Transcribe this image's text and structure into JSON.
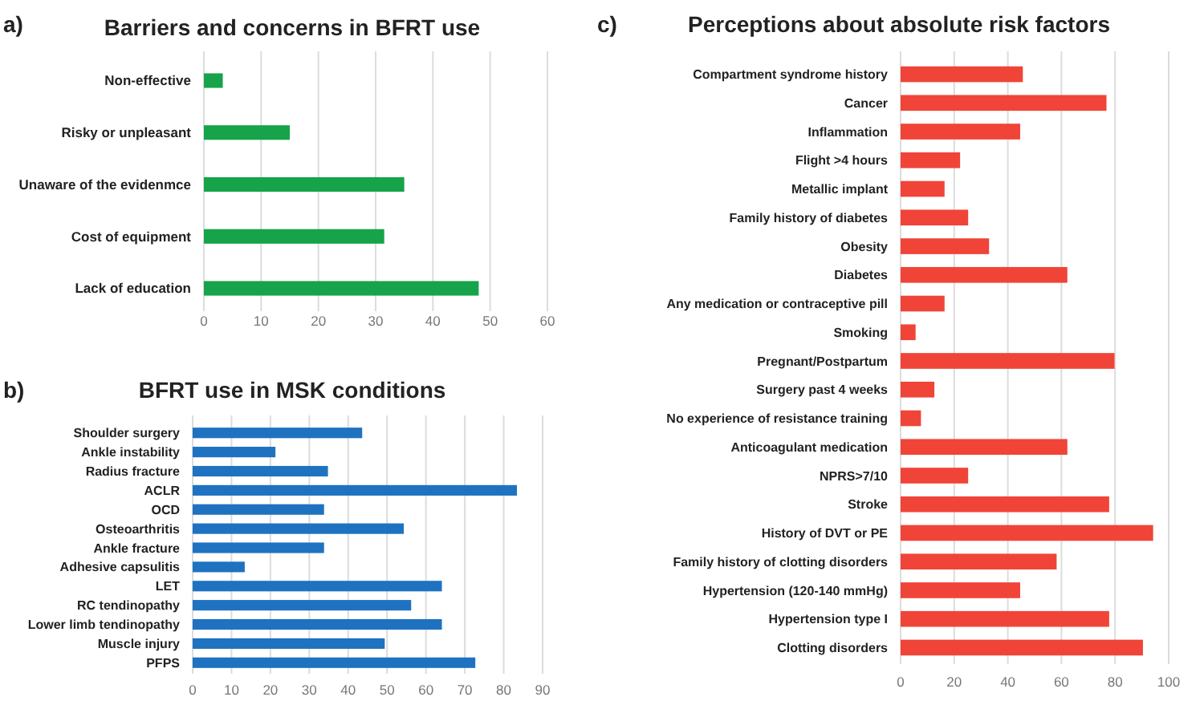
{
  "chart_data": [
    {
      "type": "bar",
      "orientation": "horizontal",
      "title": "Barriers and concerns in BFRT use",
      "annotations": [
        "a)"
      ],
      "categories": [
        "Non-effective",
        "Risky or unpleasant",
        "Unaware of the evidenmce",
        "Cost of equipment",
        "Lack of education"
      ],
      "series": [
        {
          "color": "#16a34a",
          "values": [
            3.3,
            15,
            35,
            31.5,
            48
          ]
        }
      ],
      "xlim": [
        0,
        60
      ],
      "xticks": [
        0,
        10,
        20,
        30,
        40,
        50,
        60
      ],
      "grid": "x"
    },
    {
      "type": "bar",
      "orientation": "horizontal",
      "title": "BFRT use in MSK conditions",
      "annotations": [
        "b)"
      ],
      "categories": [
        "Shoulder surgery",
        "Ankle instability",
        "Radius fracture",
        "ACLR",
        "OCD",
        "Osteoarthritis",
        "Ankle fracture",
        "Adhesive capsulitis",
        "LET",
        "RC tendinopathy",
        "Lower limb tendinopathy",
        "Muscle injury",
        "PFPS"
      ],
      "series": [
        {
          "color": "#1f72c0",
          "values": [
            43.6,
            21.3,
            34.8,
            83.4,
            33.8,
            54.3,
            33.8,
            13.4,
            64.1,
            56.2,
            64.1,
            49.4,
            72.7
          ]
        }
      ],
      "xlim": [
        0,
        90
      ],
      "xticks": [
        0,
        10,
        20,
        30,
        40,
        50,
        60,
        70,
        80,
        90
      ],
      "grid": "x"
    },
    {
      "type": "bar",
      "orientation": "horizontal",
      "title": "Perceptions about absolute risk factors",
      "annotations": [
        "c)"
      ],
      "categories": [
        "Compartment syndrome history",
        "Cancer",
        "Inflammation",
        "Flight >4 hours",
        "Metallic implant",
        "Family history of diabetes",
        "Obesity",
        "Diabetes",
        "Any medication or contraceptive pill",
        "Smoking",
        "Pregnant/Postpartum",
        "Surgery past 4 weeks",
        "No experience of resistance training",
        "Anticoagulant medication",
        "NPRS>7/10",
        "Stroke",
        "History of DVT or PE",
        "Family history of clotting disorders",
        "Hypertension (120-140 mmHg)",
        "Hypertension type I",
        "Clotting disorders"
      ],
      "series": [
        {
          "color": "#f04438",
          "values": [
            45.6,
            76.8,
            44.6,
            22.2,
            16.4,
            25.2,
            33,
            62.2,
            16.4,
            5.6,
            79.8,
            12.6,
            7.6,
            62.2,
            25.2,
            77.8,
            94.2,
            58.2,
            44.6,
            77.8,
            90.4
          ]
        }
      ],
      "xlim": [
        0,
        100
      ],
      "xticks": [
        0,
        20,
        40,
        60,
        80,
        100
      ],
      "grid": "x"
    }
  ]
}
